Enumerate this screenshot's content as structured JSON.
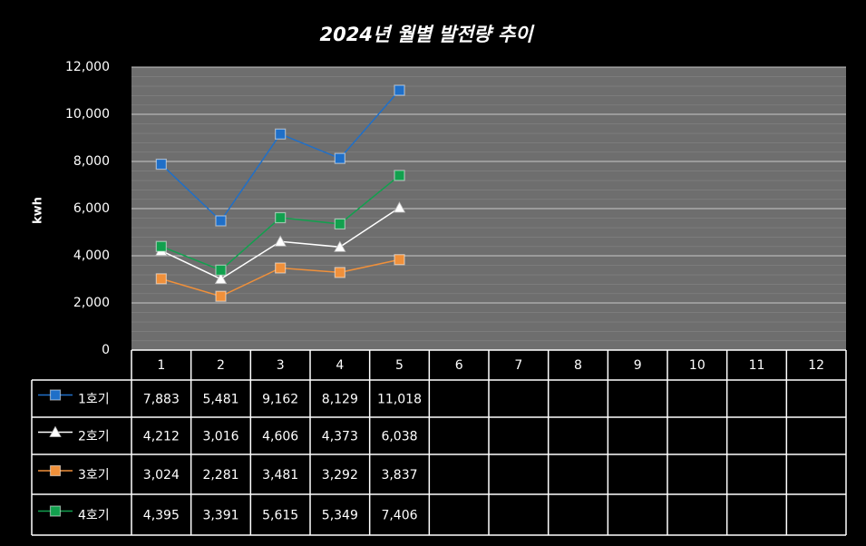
{
  "chart_data": {
    "type": "line",
    "title": "2024년 월별 발전량 추이",
    "y_label": "kwh",
    "categories": [
      "1",
      "2",
      "3",
      "4",
      "5",
      "6",
      "7",
      "8",
      "9",
      "10",
      "11",
      "12"
    ],
    "ylim": [
      0,
      12000
    ],
    "yticks": [
      0,
      {
        "value": 2000,
        "label": "2,000"
      },
      {
        "value": 4000,
        "label": "4,000"
      },
      {
        "value": 6000,
        "label": "6,000"
      },
      {
        "value": 8000,
        "label": "8,000"
      },
      {
        "value": 10000,
        "label": "10,000"
      },
      {
        "value": 12000,
        "label": "12,000"
      }
    ],
    "grid": true,
    "series": [
      {
        "name": "1호기",
        "color": "#1f6fc8",
        "marker": "square",
        "values": [
          7883,
          5481,
          9162,
          8129,
          11018,
          null,
          null,
          null,
          null,
          null,
          null,
          null
        ],
        "value_labels": [
          "7,883",
          "5,481",
          "9,162",
          "8,129",
          "11,018",
          null,
          null,
          null,
          null,
          null,
          null,
          null
        ]
      },
      {
        "name": "2호기",
        "color": "#ffffff",
        "marker": "triangle",
        "values": [
          4212,
          3016,
          4606,
          4373,
          6038,
          null,
          null,
          null,
          null,
          null,
          null,
          null
        ],
        "value_labels": [
          "4,212",
          "3,016",
          "4,606",
          "4,373",
          "6,038",
          null,
          null,
          null,
          null,
          null,
          null,
          null
        ]
      },
      {
        "name": "3호기",
        "color": "#f0903a",
        "marker": "square",
        "values": [
          3024,
          2281,
          3481,
          3292,
          3837,
          null,
          null,
          null,
          null,
          null,
          null,
          null
        ],
        "value_labels": [
          "3,024",
          "2,281",
          "3,481",
          "3,292",
          "3,837",
          null,
          null,
          null,
          null,
          null,
          null,
          null
        ]
      },
      {
        "name": "4호기",
        "color": "#12a04e",
        "marker": "square",
        "values": [
          4395,
          3391,
          5615,
          5349,
          7406,
          null,
          null,
          null,
          null,
          null,
          null,
          null
        ],
        "value_labels": [
          "4,395",
          "3,391",
          "5,615",
          "5,349",
          "7,406",
          null,
          null,
          null,
          null,
          null,
          null,
          null
        ]
      }
    ]
  }
}
